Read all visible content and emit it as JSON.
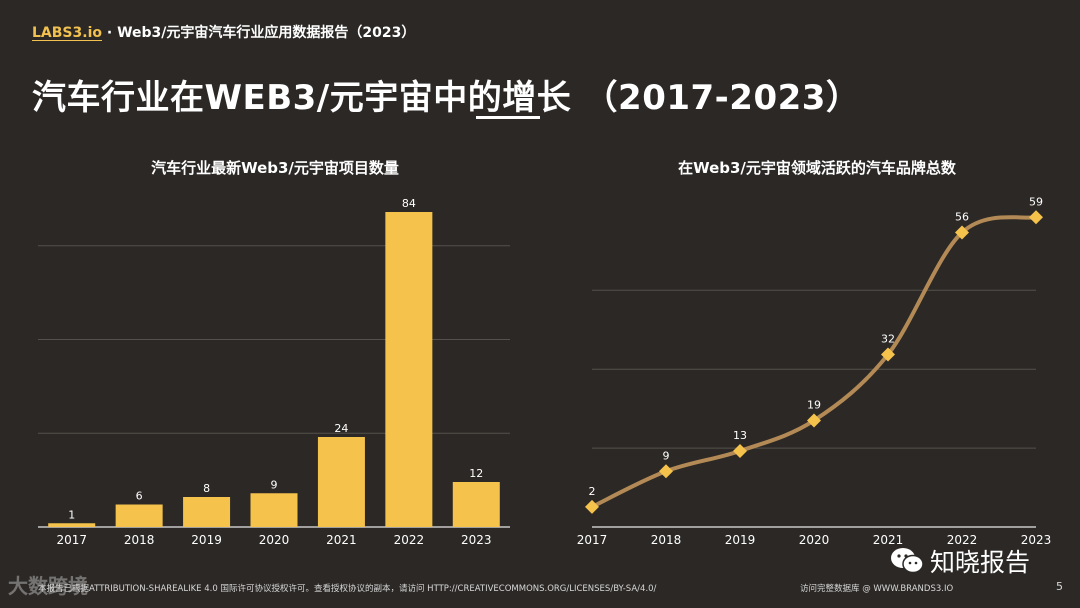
{
  "header": {
    "brand": "LABS3.io",
    "subtitle": " · Web3/元宇宙汽车行业应用数据报告（2023）"
  },
  "title": {
    "text": "汽车行业在WEB3/元宇宙中的增长 （2017-2023）"
  },
  "colors": {
    "background": "#2b2826",
    "bar": "#f5c24c",
    "line": "#b38a55",
    "marker": "#f5c24c",
    "grid": "#55504b",
    "axis": "#e8e8e8"
  },
  "chart_data": [
    {
      "type": "bar",
      "title": "汽车行业最新Web3/元宇宙项目数量",
      "categories": [
        "2017",
        "2018",
        "2019",
        "2020",
        "2021",
        "2022",
        "2023"
      ],
      "values": [
        1,
        6,
        8,
        9,
        24,
        84,
        12
      ],
      "xlabel": "",
      "ylabel": "",
      "ylim": [
        0,
        100
      ],
      "grid": true
    },
    {
      "type": "line",
      "title": "在Web3/元宇宙领域活跃的汽车品牌总数",
      "categories": [
        "2017",
        "2018",
        "2019",
        "2020",
        "2021",
        "2022",
        "2023"
      ],
      "values": [
        2,
        9,
        13,
        19,
        32,
        56,
        59
      ],
      "xlabel": "",
      "ylabel": "",
      "ylim": [
        0,
        70
      ],
      "grid": true
    }
  ],
  "footer": {
    "license": "本报告已根据ATTRIBUTION-SHAREALIKE 4.0 国际许可协议授权许可。查看授权协议的副本，请访问 HTTP://CREATIVECOMMONS.ORG/LICENSES/BY-SA/4.0/",
    "database": "访问完整数据库 @ WWW.BRANDS3.IO",
    "page": "5"
  },
  "watermarks": {
    "left": "大数跨境",
    "right": "知晓报告"
  }
}
